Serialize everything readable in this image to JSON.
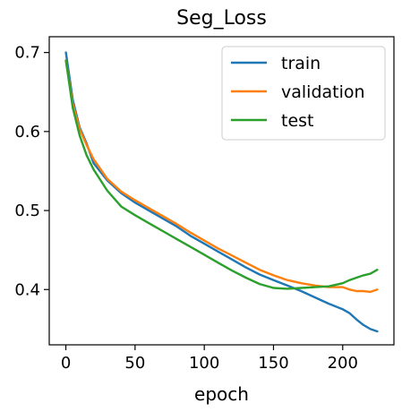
{
  "chart_data": {
    "type": "line",
    "title": "Seg_Loss",
    "xlabel": "epoch",
    "ylabel": "",
    "xlim": [
      -12,
      237
    ],
    "ylim": [
      0.33,
      0.72
    ],
    "xticks": [
      0,
      50,
      100,
      150,
      200
    ],
    "yticks": [
      0.4,
      0.5,
      0.6,
      0.7
    ],
    "x_tick_labels": [
      "0",
      "50",
      "100",
      "150",
      "200"
    ],
    "y_tick_labels": [
      "0.4",
      "0.5",
      "0.6",
      "0.7"
    ],
    "grid": false,
    "legend_position": "upper right",
    "series": [
      {
        "name": "train",
        "color": "#1f77b4",
        "x": [
          0,
          5,
          10,
          15,
          20,
          30,
          40,
          50,
          60,
          70,
          80,
          90,
          100,
          110,
          120,
          130,
          140,
          150,
          160,
          170,
          180,
          190,
          200,
          205,
          210,
          215,
          220,
          225
        ],
        "y": [
          0.7,
          0.64,
          0.605,
          0.585,
          0.56,
          0.538,
          0.522,
          0.51,
          0.5,
          0.49,
          0.48,
          0.468,
          0.458,
          0.448,
          0.438,
          0.428,
          0.419,
          0.412,
          0.405,
          0.398,
          0.39,
          0.382,
          0.375,
          0.37,
          0.362,
          0.355,
          0.35,
          0.347
        ]
      },
      {
        "name": "validation",
        "color": "#ff7f0e",
        "x": [
          0,
          5,
          10,
          15,
          20,
          30,
          40,
          50,
          60,
          70,
          80,
          90,
          100,
          110,
          120,
          130,
          140,
          150,
          160,
          170,
          180,
          190,
          200,
          205,
          210,
          215,
          220,
          225
        ],
        "y": [
          0.69,
          0.635,
          0.603,
          0.583,
          0.565,
          0.54,
          0.524,
          0.513,
          0.503,
          0.493,
          0.483,
          0.472,
          0.462,
          0.452,
          0.443,
          0.434,
          0.425,
          0.418,
          0.412,
          0.408,
          0.405,
          0.403,
          0.403,
          0.4,
          0.398,
          0.398,
          0.397,
          0.4
        ]
      },
      {
        "name": "test",
        "color": "#2ca02c",
        "x": [
          0,
          5,
          10,
          15,
          20,
          30,
          40,
          50,
          60,
          70,
          80,
          90,
          100,
          110,
          120,
          130,
          140,
          150,
          160,
          170,
          180,
          190,
          200,
          205,
          210,
          215,
          220,
          225
        ],
        "y": [
          0.69,
          0.63,
          0.595,
          0.57,
          0.552,
          0.525,
          0.505,
          0.494,
          0.484,
          0.474,
          0.464,
          0.454,
          0.444,
          0.434,
          0.424,
          0.415,
          0.407,
          0.402,
          0.401,
          0.402,
          0.403,
          0.404,
          0.408,
          0.412,
          0.415,
          0.418,
          0.42,
          0.425
        ]
      }
    ]
  }
}
